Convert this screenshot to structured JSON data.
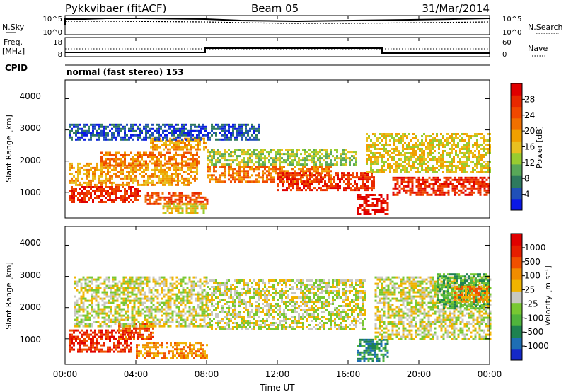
{
  "header": {
    "station": "Pykkvibaer (fitACF)",
    "beam": "Beam 05",
    "date": "31/Mar/2014"
  },
  "sky_panel": {
    "left_label": "N.Sky",
    "right_label": "N.Search",
    "left_ticks": [
      "10^5",
      "10^0"
    ],
    "right_ticks": [
      "10^5",
      "10^0"
    ]
  },
  "freq_panel": {
    "left_label_1": "Freq.",
    "left_label_2": "[MHz]",
    "left_ticks": [
      "18",
      "8"
    ],
    "right_label": "Nave",
    "right_ticks": [
      "60",
      "0"
    ]
  },
  "cpid_panel": {
    "label": "CPID",
    "program": "normal (fast stereo) 153"
  },
  "x_axis": {
    "label": "Time UT",
    "ticks": [
      "00:00",
      "04:00",
      "08:00",
      "12:00",
      "16:00",
      "20:00",
      "00:00"
    ]
  },
  "chart_data": [
    {
      "type": "heatmap",
      "ylabel": "Slant Range [km]",
      "y_ticks": [
        "1000",
        "2000",
        "3000",
        "4000"
      ],
      "ylim": [
        180,
        4600
      ],
      "xlim_hours": [
        0,
        24
      ],
      "colorbar_label": "Power [dB]",
      "colorbar_ticks": [
        "4",
        "8",
        "12",
        "16",
        "20",
        "24",
        "28"
      ],
      "colors": [
        "#0a18e6",
        "#2050b8",
        "#2e7a5e",
        "#58a858",
        "#98cc30",
        "#e8c020",
        "#f0a000",
        "#f07000",
        "#f04800",
        "#e82800",
        "#e00000"
      ],
      "bands": [
        {
          "t": [
            0.2,
            4.2
          ],
          "lo": 700,
          "hi": 1200,
          "level": 9
        },
        {
          "t": [
            0.2,
            7.5
          ],
          "lo": 1250,
          "hi": 1950,
          "level": 6
        },
        {
          "t": [
            2.0,
            7.6
          ],
          "lo": 1850,
          "hi": 2300,
          "level": 7
        },
        {
          "t": [
            4.8,
            8.0
          ],
          "lo": 2350,
          "hi": 2750,
          "level": 6
        },
        {
          "t": [
            4.5,
            8.0
          ],
          "lo": 600,
          "hi": 1000,
          "level": 8
        },
        {
          "t": [
            5.5,
            8.0
          ],
          "lo": 350,
          "hi": 650,
          "level": 5
        },
        {
          "t": [
            8.0,
            15.0
          ],
          "lo": 1350,
          "hi": 1850,
          "level": 7
        },
        {
          "t": [
            8.0,
            16.5
          ],
          "lo": 1900,
          "hi": 2400,
          "level": 4
        },
        {
          "t": [
            12.0,
            17.5
          ],
          "lo": 1100,
          "hi": 1650,
          "level": 9
        },
        {
          "t": [
            16.5,
            18.2
          ],
          "lo": 300,
          "hi": 950,
          "level": 10
        },
        {
          "t": [
            18.5,
            24.0
          ],
          "lo": 950,
          "hi": 1500,
          "level": 9
        },
        {
          "t": [
            17.0,
            24.0
          ],
          "lo": 1650,
          "hi": 2900,
          "level": 5
        },
        {
          "t": [
            0.2,
            11.0
          ],
          "lo": 2700,
          "hi": 3200,
          "level": 1
        }
      ]
    },
    {
      "type": "heatmap",
      "ylabel": "Slant Range [km]",
      "y_ticks": [
        "1000",
        "2000",
        "3000",
        "4000"
      ],
      "ylim": [
        180,
        4600
      ],
      "xlim_hours": [
        0,
        24
      ],
      "colorbar_label": "Velocity [m s⁻¹]",
      "colorbar_ticks": [
        "1000",
        "500",
        "100",
        "25",
        "-25",
        "-100",
        "-500",
        "-1000"
      ],
      "colors": [
        "#1428c8",
        "#1e6eb4",
        "#1e8250",
        "#50b43c",
        "#78c832",
        "#c8c8c0",
        "#f0b400",
        "#f08c00",
        "#f05000",
        "#e61e00",
        "#e00000"
      ],
      "bands": [
        {
          "t": [
            0.2,
            3.8
          ],
          "lo": 600,
          "hi": 1300,
          "level": 9
        },
        {
          "t": [
            3.0,
            5.0
          ],
          "lo": 1000,
          "hi": 1500,
          "level": 8
        },
        {
          "t": [
            0.5,
            8.0
          ],
          "lo": 1400,
          "hi": 3000,
          "level": 5
        },
        {
          "t": [
            4.0,
            8.0
          ],
          "lo": 400,
          "hi": 900,
          "level": 7
        },
        {
          "t": [
            8.0,
            17.0
          ],
          "lo": 1300,
          "hi": 2900,
          "level": 5
        },
        {
          "t": [
            16.5,
            18.2
          ],
          "lo": 300,
          "hi": 1000,
          "level": 2
        },
        {
          "t": [
            17.5,
            24.0
          ],
          "lo": 1000,
          "hi": 3000,
          "level": 5
        },
        {
          "t": [
            21.0,
            24.0
          ],
          "lo": 2000,
          "hi": 3100,
          "level": 3
        },
        {
          "t": [
            22.0,
            24.0
          ],
          "lo": 2200,
          "hi": 2700,
          "level": 7
        }
      ]
    }
  ]
}
